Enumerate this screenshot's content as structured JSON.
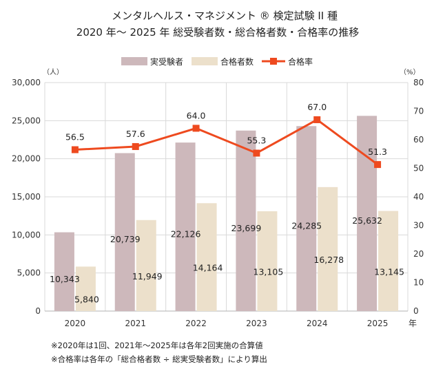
{
  "chart_data": {
    "type": "bar",
    "title_line1": "メンタルヘルス・マネジメント ® 検定試験 II 種",
    "title_line2": "2020 年～ 2025 年 総受験者数・総合格者数・合格率の推移",
    "categories": [
      "2020",
      "2021",
      "2022",
      "2023",
      "2024",
      "2025"
    ],
    "x_unit": "年",
    "y_left": {
      "unit": "（人）",
      "ylim": [
        0,
        30000
      ],
      "ticks": [
        "0",
        "5,000",
        "10,000",
        "15,000",
        "20,000",
        "25,000",
        "30,000"
      ]
    },
    "y_right": {
      "unit": "（%）",
      "ylim": [
        0,
        80
      ],
      "ticks": [
        "0",
        "10",
        "20",
        "30",
        "40",
        "50",
        "60",
        "70",
        "80"
      ]
    },
    "grid": true,
    "legend_position": "top",
    "series": [
      {
        "name": "実受験者",
        "type": "bar",
        "axis": "left",
        "color": "#cdb8bb",
        "values": [
          10343,
          20739,
          22126,
          23699,
          24285,
          25632
        ],
        "labels": [
          "10,343",
          "20,739",
          "22,126",
          "23,699",
          "24,285",
          "25,632"
        ]
      },
      {
        "name": "合格者数",
        "type": "bar",
        "axis": "left",
        "color": "#ece0cb",
        "values": [
          5840,
          11949,
          14164,
          13105,
          16278,
          13145
        ],
        "labels": [
          "5,840",
          "11,949",
          "14,164",
          "13,105",
          "16,278",
          "13,145"
        ]
      },
      {
        "name": "合格率",
        "type": "line",
        "axis": "right",
        "color": "#ee4a1f",
        "values": [
          56.5,
          57.6,
          64.0,
          55.3,
          67.0,
          51.3
        ],
        "labels": [
          "56.5",
          "57.6",
          "64.0",
          "55.3",
          "67.0",
          "51.3"
        ]
      }
    ]
  },
  "notes": [
    "※2020年は1回、2021年～2025年は各年2回実施の合算値",
    "※合格率は各年の「総合格者数 ÷ 総実受験者数」により算出"
  ]
}
